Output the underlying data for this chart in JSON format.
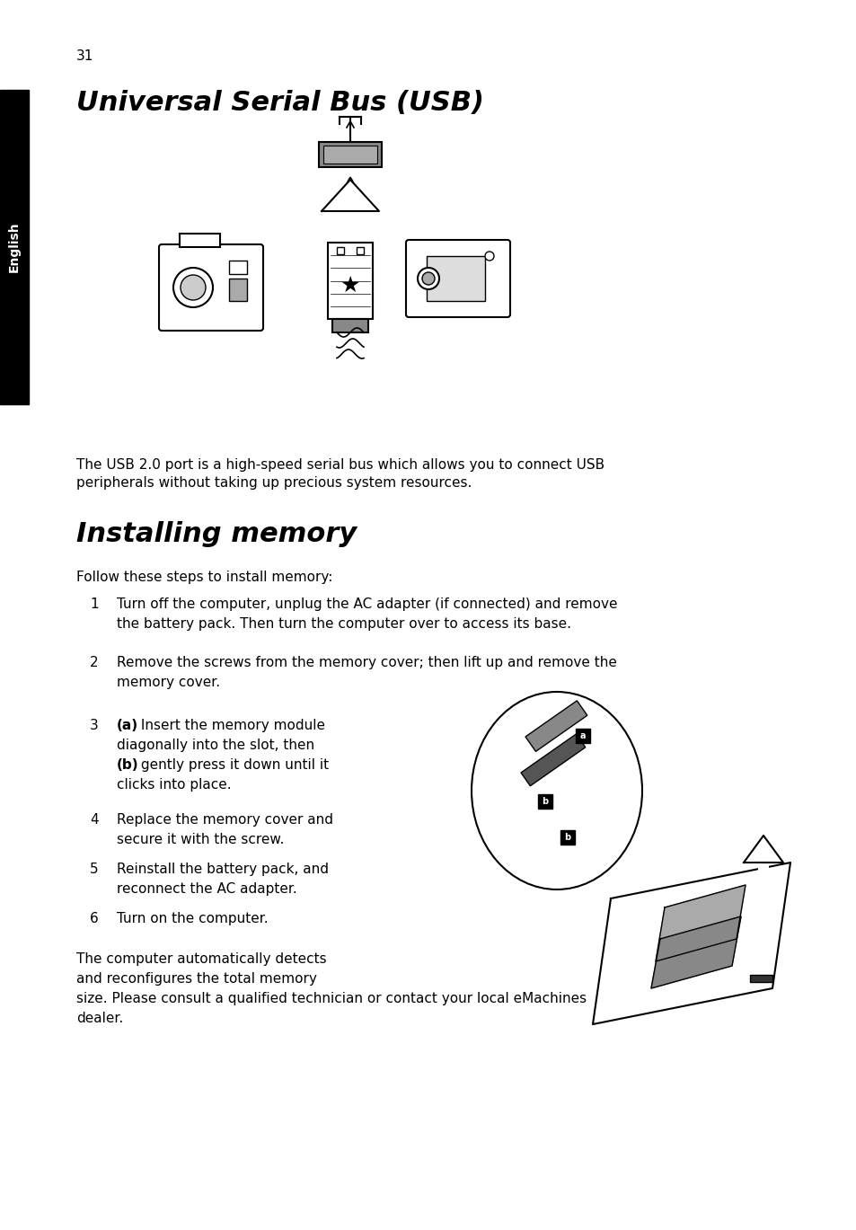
{
  "page_number": "31",
  "title1": "Universal Serial Bus (USB)",
  "title2": "Installing memory",
  "usb_description": "The USB 2.0 port is a high-speed serial bus which allows you to connect USB\nperipherals without taking up precious system resources.",
  "install_intro": "Follow these steps to install memory:",
  "steps": [
    "Turn off the computer, unplug the AC adapter (if connected) and remove\nthe battery pack. Then turn the computer over to access its base.",
    "Remove the screws from the memory cover; then lift up and remove the\nmemory cover.",
    "(a) Insert the memory module\ndiagonally into the slot, then\n(b) gently press it down until it\nclicks into place.",
    "Replace the memory cover and\nsecure it with the screw.",
    "Reinstall the battery pack, and\nreconnect the AC adapter.",
    "Turn on the computer."
  ],
  "closing_text": "The computer automatically detects\nand reconfigures the total memory\nsize. Please consult a qualified technician or contact your local eMachines\ndealer.",
  "sidebar_text": "English",
  "background_color": "#ffffff",
  "sidebar_color": "#000000",
  "sidebar_text_color": "#ffffff",
  "text_color": "#000000"
}
